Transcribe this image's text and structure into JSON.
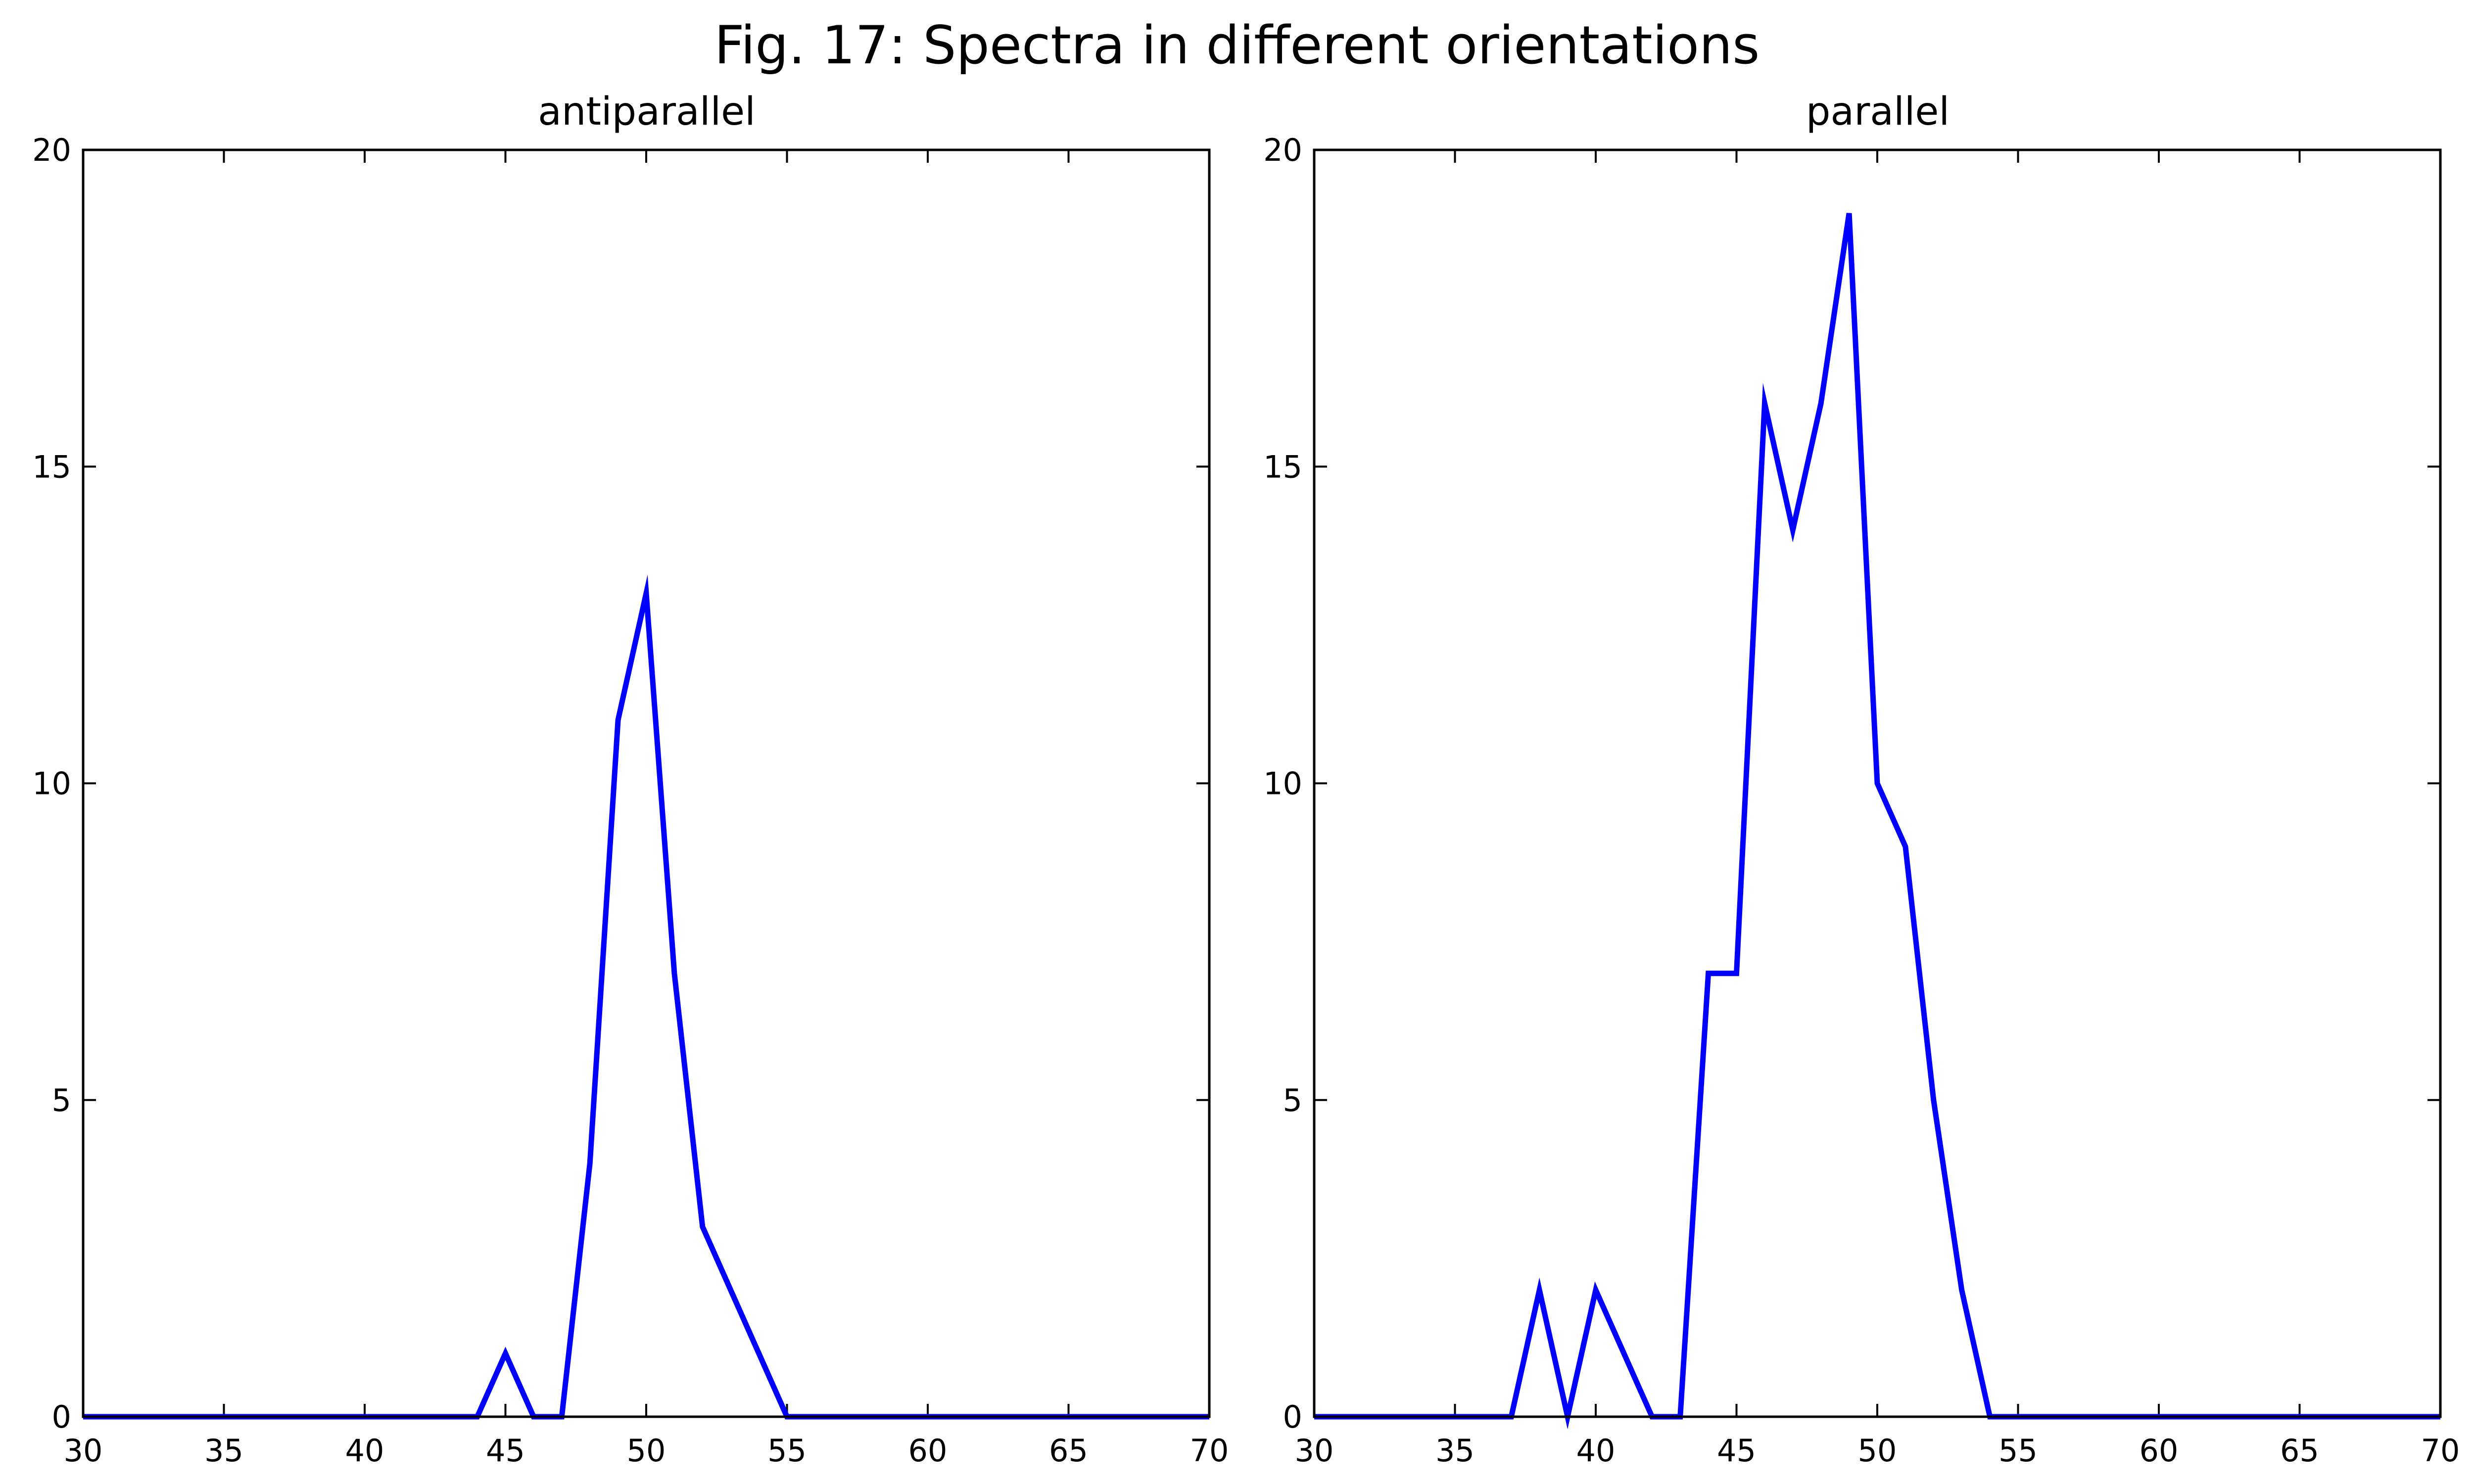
{
  "figure": {
    "title": "Fig. 17: Spectra in different orientations"
  },
  "colors": {
    "series_line": "#0000ff",
    "axes": "#000000",
    "background": "#ffffff"
  },
  "chart_data": [
    {
      "type": "line",
      "title": "antiparallel",
      "xlabel": "",
      "ylabel": "",
      "xlim": [
        30,
        70
      ],
      "ylim": [
        0,
        20
      ],
      "xticks": [
        30,
        35,
        40,
        45,
        50,
        55,
        60,
        65,
        70
      ],
      "yticks": [
        0,
        5,
        10,
        15,
        20
      ],
      "grid": false,
      "series": [
        {
          "x": [
            30,
            44,
            45,
            46,
            47,
            48,
            49,
            50,
            51,
            52,
            53,
            54,
            55,
            70
          ],
          "values": [
            0,
            0,
            1,
            0,
            0,
            4,
            11,
            13,
            7,
            3,
            2,
            1,
            0,
            0
          ]
        }
      ]
    },
    {
      "type": "line",
      "title": "parallel",
      "xlabel": "",
      "ylabel": "",
      "xlim": [
        30,
        70
      ],
      "ylim": [
        0,
        20
      ],
      "xticks": [
        30,
        35,
        40,
        45,
        50,
        55,
        60,
        65,
        70
      ],
      "yticks": [
        0,
        5,
        10,
        15,
        20
      ],
      "grid": false,
      "series": [
        {
          "x": [
            30,
            37,
            38,
            39,
            40,
            41,
            42,
            43,
            44,
            45,
            46,
            47,
            48,
            49,
            50,
            51,
            52,
            53,
            54,
            70
          ],
          "values": [
            0,
            0,
            2,
            0,
            2,
            1,
            0,
            0,
            7,
            7,
            16,
            14,
            16,
            19,
            10,
            9,
            5,
            2,
            0,
            0
          ]
        }
      ]
    }
  ]
}
